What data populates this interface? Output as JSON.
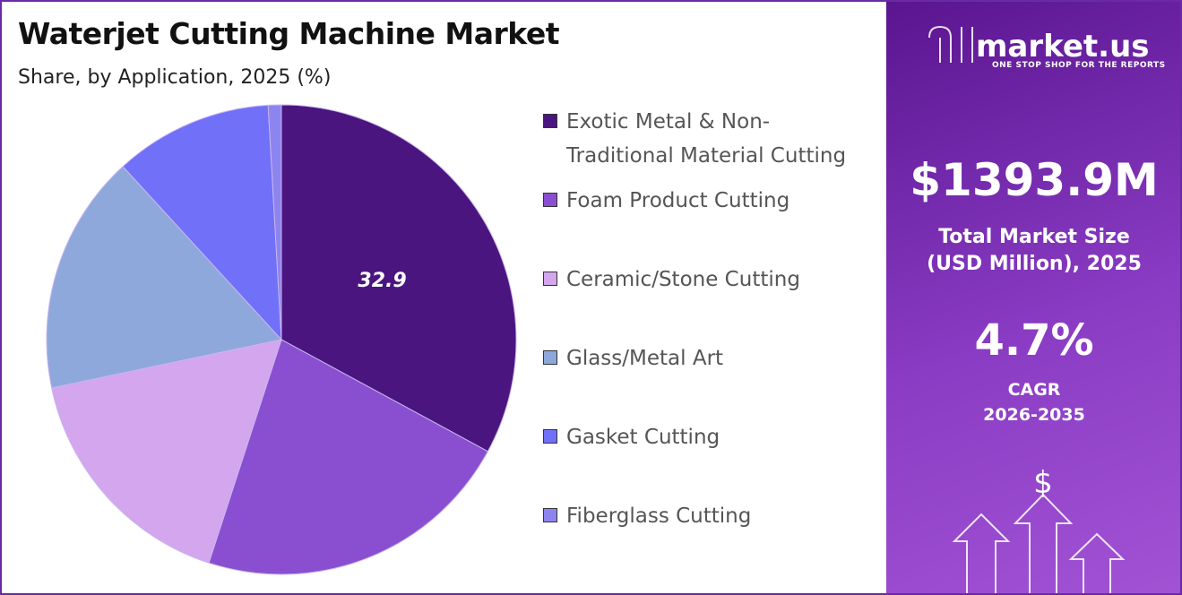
{
  "chart_data": {
    "type": "pie",
    "title": "Waterjet Cutting Machine Market",
    "subtitle": "Share, by Application, 2025 (%)",
    "categories": [
      "Exotic Metal & Non-Traditional Material Cutting",
      "Foam Product Cutting",
      "Ceramic/Stone Cutting",
      "Glass/Metal Art",
      "Gasket Cutting",
      "Fiberglass Cutting"
    ],
    "values": [
      32.9,
      22.1,
      16.7,
      16.5,
      10.9,
      0.9
    ],
    "colors": [
      "#4b1580",
      "#8a4fd0",
      "#d3a6ee",
      "#8fa8dc",
      "#7070f8",
      "#8e84f0"
    ],
    "legend": "right"
  },
  "panel": {
    "brand": "market.us",
    "tagline": "ONE STOP SHOP FOR THE REPORTS",
    "market_size": "$1393.9M",
    "market_size_label": "Total Market Size (USD Million), 2025",
    "cagr": "4.7%",
    "cagr_label": "CAGR",
    "cagr_period": "2026-2035"
  }
}
